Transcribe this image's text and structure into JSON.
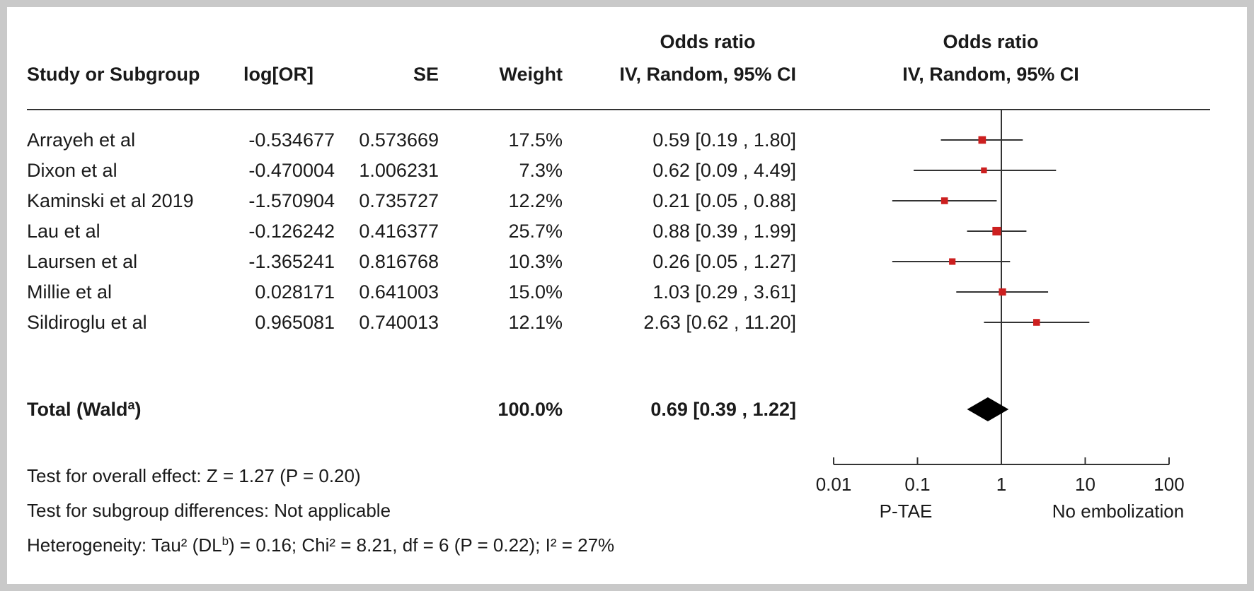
{
  "headers": {
    "study": "Study or Subgroup",
    "logor": "log[OR]",
    "se": "SE",
    "weight": "Weight",
    "or_table_top": "Odds ratio",
    "or_table_bottom": "IV, Random, 95% CI",
    "or_plot_top": "Odds ratio",
    "or_plot_bottom": "IV, Random, 95% CI"
  },
  "total": {
    "label": "Total (Wald",
    "label_sup": "a",
    "label_close": ")",
    "weight": "100.0%",
    "ci_text": "0.69 [0.39 , 1.22]"
  },
  "footer": {
    "overall_effect": "Test for overall effect: Z = 1.27 (P = 0.20)",
    "subgroup_diff": "Test for subgroup differences: Not applicable",
    "heterogeneity_pre": "Heterogeneity: Tau² (DL",
    "heterogeneity_sup": "b",
    "heterogeneity_post": ") = 0.16; Chi² = 8.21, df = 6 (P = 0.22); I² = 27%"
  },
  "colors": {
    "marker": "#cc1f1f",
    "line": "#333333",
    "diamond": "#000000",
    "frame": "#c9c9c9"
  },
  "chart_data": {
    "type": "forest",
    "x_scale": "log",
    "xlim": [
      0.01,
      100
    ],
    "x_ticks": [
      0.01,
      0.1,
      1,
      10,
      100
    ],
    "x_tick_labels": [
      "0.01",
      "0.1",
      "1",
      "10",
      "100"
    ],
    "null_line": 1,
    "favours_left": "P-TAE",
    "favours_right": "No embolization",
    "studies": [
      {
        "name": "Arrayeh et al",
        "logor": "-0.534677",
        "se": "0.573669",
        "weight_label": "17.5%",
        "weight": 17.5,
        "or": 0.59,
        "lo": 0.19,
        "hi": 1.8,
        "ci_text": "0.59 [0.19 , 1.80]"
      },
      {
        "name": "Dixon et al",
        "logor": "-0.470004",
        "se": "1.006231",
        "weight_label": "7.3%",
        "weight": 7.3,
        "or": 0.62,
        "lo": 0.09,
        "hi": 4.49,
        "ci_text": "0.62 [0.09 , 4.49]"
      },
      {
        "name": "Kaminski et al 2019",
        "logor": "-1.570904",
        "se": "0.735727",
        "weight_label": "12.2%",
        "weight": 12.2,
        "or": 0.21,
        "lo": 0.05,
        "hi": 0.88,
        "ci_text": "0.21 [0.05 , 0.88]"
      },
      {
        "name": "Lau et al",
        "logor": "-0.126242",
        "se": "0.416377",
        "weight_label": "25.7%",
        "weight": 25.7,
        "or": 0.88,
        "lo": 0.39,
        "hi": 1.99,
        "ci_text": "0.88 [0.39 , 1.99]"
      },
      {
        "name": "Laursen et al",
        "logor": "-1.365241",
        "se": "0.816768",
        "weight_label": "10.3%",
        "weight": 10.3,
        "or": 0.26,
        "lo": 0.05,
        "hi": 1.27,
        "ci_text": "0.26 [0.05 , 1.27]"
      },
      {
        "name": "Millie et al",
        "logor": "0.028171",
        "se": "0.641003",
        "weight_label": "15.0%",
        "weight": 15.0,
        "or": 1.03,
        "lo": 0.29,
        "hi": 3.61,
        "ci_text": "1.03 [0.29 , 3.61]"
      },
      {
        "name": "Sildiroglu et al",
        "logor": "0.965081",
        "se": "0.740013",
        "weight_label": "12.1%",
        "weight": 12.1,
        "or": 2.63,
        "lo": 0.62,
        "hi": 11.2,
        "ci_text": "2.63 [0.62 , 11.20]"
      }
    ],
    "pooled": {
      "or": 0.69,
      "lo": 0.39,
      "hi": 1.22
    }
  }
}
